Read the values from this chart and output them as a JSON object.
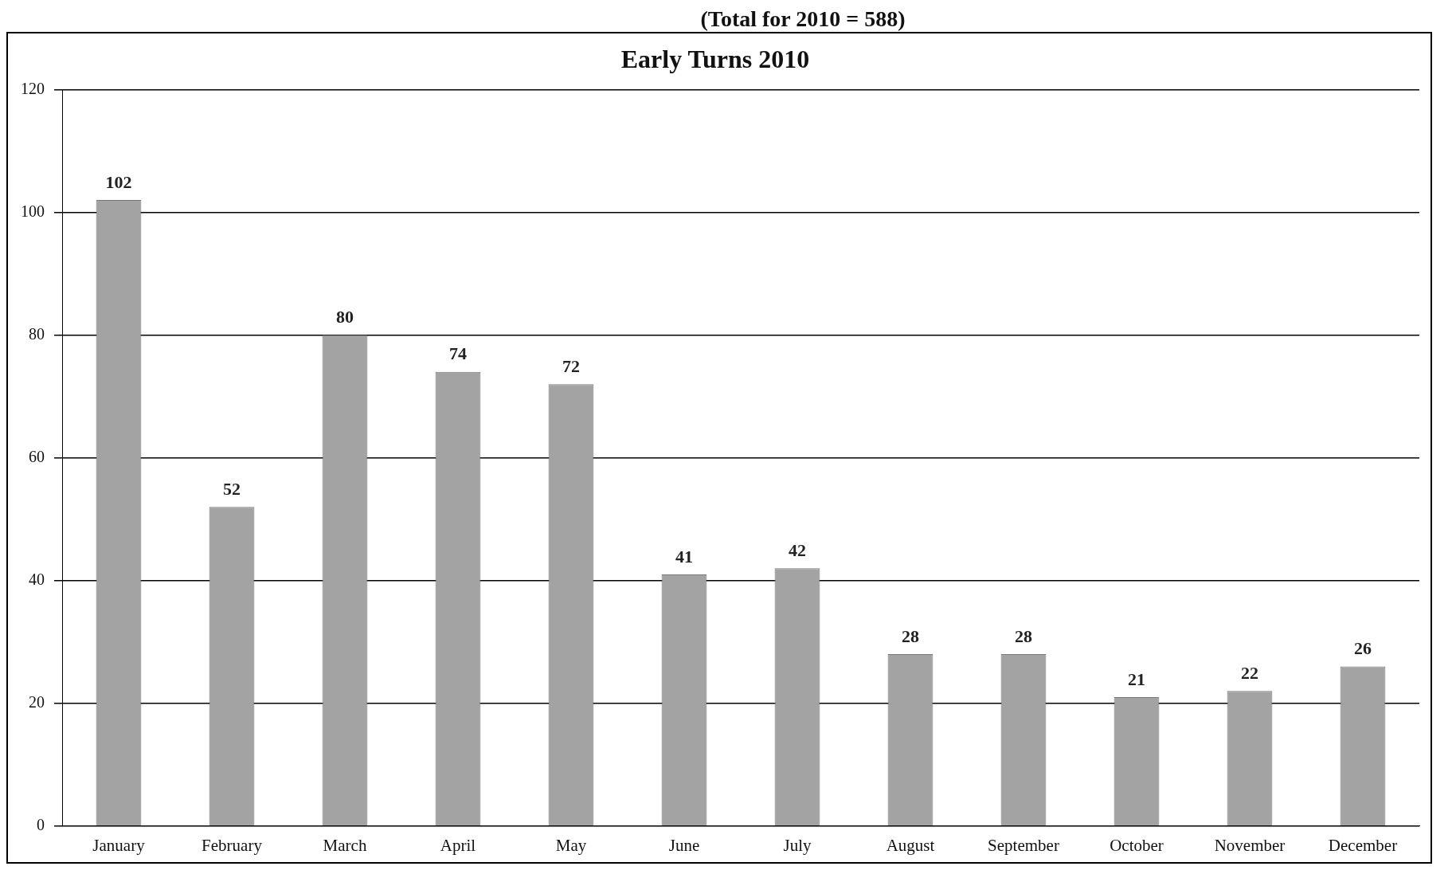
{
  "chart_data": {
    "type": "bar",
    "title": "Early Turns 2010",
    "annotations": [
      "(Total for 2010 = 588)"
    ],
    "categories": [
      "January",
      "February",
      "March",
      "April",
      "May",
      "June",
      "July",
      "August",
      "September",
      "October",
      "November",
      "December"
    ],
    "values": [
      102,
      52,
      80,
      74,
      72,
      41,
      42,
      28,
      28,
      21,
      22,
      26
    ],
    "color": "#a3a3a3",
    "ylim": [
      0,
      120
    ],
    "yticks": [
      0,
      20,
      40,
      60,
      80,
      100,
      120
    ],
    "grid": "y",
    "data_labels": true,
    "legend": false
  }
}
